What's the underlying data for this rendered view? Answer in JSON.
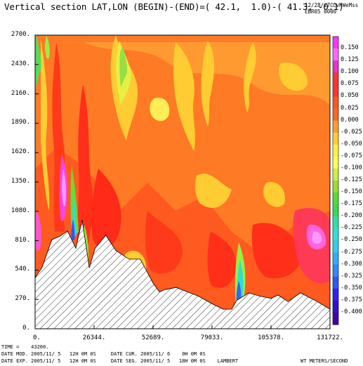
{
  "chart_data": {
    "type": "heatmap",
    "title": "Vertical section LAT,LON (BEGIN)-(END)=( 42.1,  1.0)-( 41.3, -0.1)",
    "corner_lines": [
      "12/28//7C",
      "EBR05 0000"
    ],
    "corner_tag": "CvHWeMss",
    "x_ticks": [
      "0.",
      "26344.",
      "52689.",
      "79033.",
      "105378.",
      "131722."
    ],
    "y_ticks": [
      "0.",
      "270.",
      "540.",
      "810.",
      "1080.",
      "1350.",
      "1620.",
      "1890.",
      "2160.",
      "2430.",
      "2700."
    ],
    "xlim": [
      0,
      131722
    ],
    "ylim": [
      0,
      2700
    ],
    "colorbar": {
      "labels": [
        "0.150",
        "0.125",
        "0.100",
        "0.075",
        "0.050",
        "0.025",
        "0.000",
        "-0.025",
        "-0.050",
        "-0.075",
        "-0.100",
        "-0.125",
        "-0.150",
        "-0.175",
        "-0.200",
        "-0.225",
        "-0.250",
        "-0.275",
        "-0.300",
        "-0.325",
        "-0.350",
        "-0.375",
        "-0.400"
      ],
      "colors": [
        "#ff33ff",
        "#ff66ff",
        "#e633cc",
        "#ff3333",
        "#ff3333",
        "#ff5522",
        "#ff6622",
        "#ff9933",
        "#ffcc33",
        "#ffee44",
        "#ffff55",
        "#ccee44",
        "#99dd33",
        "#55dd33",
        "#33dd55",
        "#33ddaa",
        "#33dddd",
        "#33ccee",
        "#33aaff",
        "#3388ff",
        "#3355ff",
        "#3322ee",
        "#3311cc",
        "#4400aa"
      ]
    },
    "terrain_profile": [
      [
        0,
        470
      ],
      [
        3000,
        560
      ],
      [
        7500,
        820
      ],
      [
        11000,
        850
      ],
      [
        14500,
        900
      ],
      [
        18200,
        740
      ],
      [
        21000,
        1000
      ],
      [
        24200,
        560
      ],
      [
        26800,
        740
      ],
      [
        31600,
        860
      ],
      [
        36000,
        720
      ],
      [
        42000,
        640
      ],
      [
        47000,
        640
      ],
      [
        52700,
        420
      ],
      [
        55500,
        340
      ],
      [
        58000,
        360
      ],
      [
        63000,
        380
      ],
      [
        68000,
        340
      ],
      [
        73000,
        300
      ],
      [
        79000,
        230
      ],
      [
        84000,
        180
      ],
      [
        87800,
        180
      ],
      [
        90000,
        260
      ],
      [
        95500,
        330
      ],
      [
        100500,
        300
      ],
      [
        105400,
        280
      ],
      [
        108500,
        310
      ],
      [
        113000,
        250
      ],
      [
        118500,
        330
      ],
      [
        126000,
        250
      ],
      [
        131722,
        180
      ]
    ],
    "colors": {
      "terrain_fill": "#ffffff",
      "hatch": "#333333",
      "frame": "#000000"
    }
  },
  "footer": {
    "line1": "TIME =    43200.",
    "line2": "DATE MOD. 2005/11/ 5   12H 0M 0S     DATE CUR. 2005/11/ 6    0H 0M 0S",
    "line3": "DATE EXP. 2005/11/ 5   12H 0M 0S     DATE SEG. 2005/11/ 5   18H 0M 0S    LAMBERT",
    "units": "WT METERS/SECOND"
  }
}
